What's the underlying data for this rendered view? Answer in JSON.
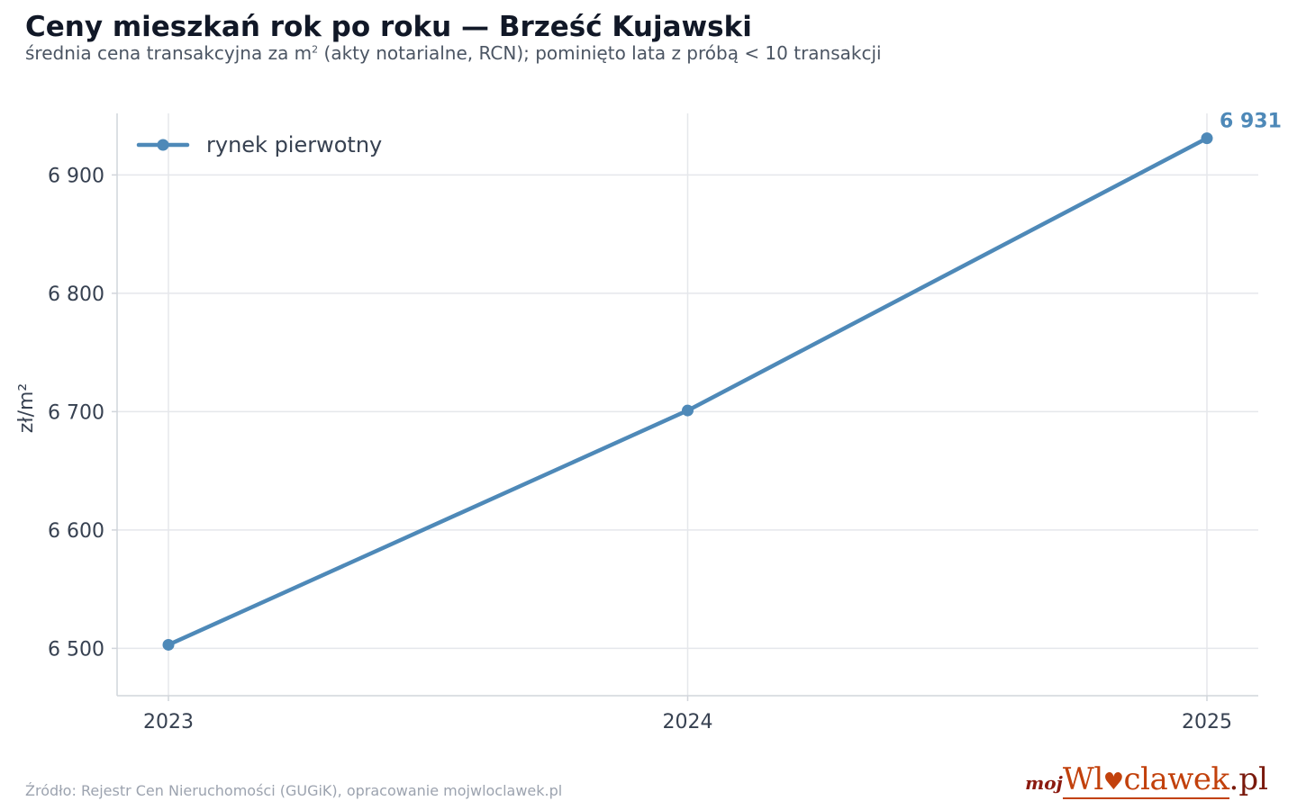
{
  "header": {
    "title": "Ceny mieszkań rok po roku — Brześć Kujawski",
    "subtitle_pre": "średnia cena transakcyjna za m",
    "subtitle_sup": "2",
    "subtitle_post": " (akty notarialne, RCN); pominięto lata z próbą < 10 transakcji"
  },
  "footer": {
    "source": "Źródło: Rejestr Cen Nieruchomości (GUGiK), opracowanie mojwloclawek.pl"
  },
  "logo": {
    "moj": "moj",
    "name_a": "Wl",
    "heart_icon": "♥",
    "name_b": "clawek",
    "tld": ".pl"
  },
  "chart_data": {
    "type": "line",
    "title": "Ceny mieszkań rok po roku — Brześć Kujawski",
    "xlabel": "",
    "ylabel": "zł/m²",
    "x": [
      "2023",
      "2024",
      "2025"
    ],
    "series": [
      {
        "name": "rynek pierwotny",
        "color": "#4e89b8",
        "values": [
          6503,
          6701,
          6931
        ]
      }
    ],
    "end_label": "6 931",
    "ylim": [
      6460,
      6952
    ],
    "yticks": [
      6500,
      6600,
      6700,
      6800,
      6900
    ],
    "ytick_labels": [
      "6 500",
      "6 600",
      "6 700",
      "6 800",
      "6 900"
    ],
    "grid": true,
    "legend_position": "top-left",
    "colors": {
      "grid": "#e5e7eb",
      "axis": "#d1d5db",
      "tick_text": "#374151"
    }
  }
}
